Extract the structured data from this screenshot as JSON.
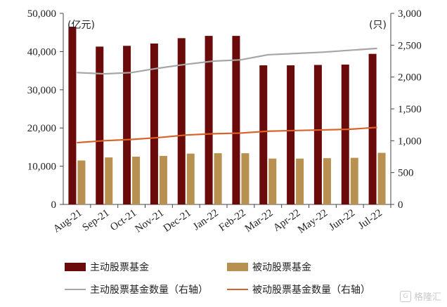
{
  "chart_data": {
    "type": "bar",
    "categories": [
      "Aug-21",
      "Sep-21",
      "Oct-21",
      "Nov-21",
      "Dec-21",
      "Jan-22",
      "Feb-22",
      "Mar-22",
      "Apr-22",
      "May-22",
      "Jun-22",
      "Jul-22"
    ],
    "left_axis": {
      "unit": "(亿元)",
      "ylim": [
        0,
        50000
      ],
      "ticks": [
        "0",
        "10,000",
        "20,000",
        "30,000",
        "40,000",
        "50,000"
      ],
      "tick_values": [
        0,
        10000,
        20000,
        30000,
        40000,
        50000
      ]
    },
    "right_axis": {
      "unit": "(只)",
      "ylim": [
        0,
        3000
      ],
      "ticks": [
        "0",
        "500",
        "1,000",
        "1,500",
        "2,000",
        "2,500",
        "3,000"
      ],
      "tick_values": [
        0,
        500,
        1000,
        1500,
        2000,
        2500,
        3000
      ]
    },
    "bar_series": [
      {
        "name": "主动股票基金",
        "color": "#6b0a0a",
        "values": [
          46500,
          41300,
          41500,
          42100,
          43500,
          44100,
          44100,
          36400,
          36400,
          36500,
          36600,
          39400
        ]
      },
      {
        "name": "被动股票基金",
        "color": "#b8904f",
        "values": [
          11500,
          12300,
          12500,
          12700,
          13300,
          13400,
          13400,
          12000,
          12000,
          12100,
          12200,
          13500
        ]
      }
    ],
    "line_series": [
      {
        "name": "主动股票基金数量（右轴）",
        "color": "#a6a6a6",
        "values": [
          2070,
          2050,
          2070,
          2140,
          2200,
          2250,
          2270,
          2350,
          2370,
          2390,
          2420,
          2450
        ]
      },
      {
        "name": "被动股票基金数量（右轴）",
        "color": "#d9622b",
        "values": [
          970,
          1000,
          1020,
          1050,
          1090,
          1110,
          1120,
          1150,
          1160,
          1170,
          1180,
          1210
        ]
      }
    ],
    "grid": false,
    "legend_position": "bottom"
  },
  "watermark": {
    "text": "格隆汇",
    "icon": "G"
  }
}
